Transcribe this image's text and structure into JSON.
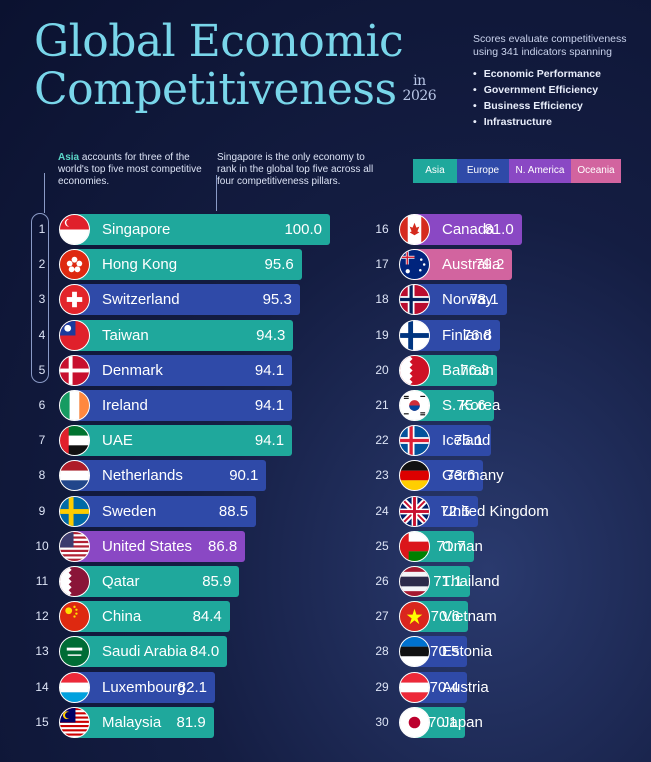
{
  "title": {
    "line1": "Global Economic",
    "line2": "Competitiveness",
    "in": "in",
    "year": "2026"
  },
  "scores_note": {
    "text": "Scores evaluate competitiveness using 341 indicators spanning",
    "pillars": [
      "Economic Performance",
      "Government Efficiency",
      "Business Efficiency",
      "Infrastructure"
    ]
  },
  "notes": {
    "asia_highlight": "Asia",
    "asia_text": " accounts for three of the world's top five most competitive economies.",
    "singapore_text": "Singapore is the only economy to rank in the global top five across all four competitiveness pillars."
  },
  "legend": [
    {
      "label": "Asia",
      "color": "#1fa89c"
    },
    {
      "label": "Europe",
      "color": "#2f4aa8"
    },
    {
      "label": "N. America",
      "color": "#8a48c4"
    },
    {
      "label": "Oceania",
      "color": "#d2649f"
    }
  ],
  "chart_data": {
    "type": "bar",
    "orientation": "horizontal",
    "categories": [
      "Singapore",
      "Hong Kong",
      "Switzerland",
      "Taiwan",
      "Denmark",
      "Ireland",
      "UAE",
      "Netherlands",
      "Sweden",
      "United States",
      "Qatar",
      "China",
      "Saudi Arabia",
      "Luxembourg",
      "Malaysia",
      "Canada",
      "Australia",
      "Norway",
      "Finland",
      "Bahrain",
      "S. Korea",
      "Iceland",
      "Germany",
      "United Kingdom",
      "Oman",
      "Thailand",
      "Vietnam",
      "Estonia",
      "Austria",
      "Japan"
    ],
    "values": [
      100.0,
      95.6,
      95.3,
      94.3,
      94.1,
      94.1,
      94.1,
      90.1,
      88.5,
      86.8,
      85.9,
      84.4,
      84.0,
      82.1,
      81.9,
      81.0,
      79.2,
      78.1,
      76.8,
      76.3,
      75.6,
      75.1,
      73.6,
      72.5,
      71.7,
      71.1,
      70.6,
      70.5,
      70.4,
      70.1
    ],
    "labels": [
      "100.0",
      "95.6",
      "95.3",
      "94.3",
      "94.1",
      "94.1",
      "94.1",
      "90.1",
      "88.5",
      "86.8",
      "85.9",
      "84.4",
      "84.0",
      "82.1",
      "81.9",
      "81.0",
      "79.2",
      "78.1",
      "76.8",
      "76.3",
      "75.6",
      "75.1",
      "73.6",
      "72.5",
      "71.7",
      "71.1",
      "70.6",
      "70.5",
      "70.4",
      "70.1"
    ],
    "ranks": [
      1,
      2,
      3,
      4,
      5,
      6,
      7,
      8,
      9,
      10,
      11,
      12,
      13,
      14,
      15,
      16,
      17,
      18,
      19,
      20,
      21,
      22,
      23,
      24,
      25,
      26,
      27,
      28,
      29,
      30
    ],
    "regions": [
      "Asia",
      "Asia",
      "Europe",
      "Asia",
      "Europe",
      "Europe",
      "Asia",
      "Europe",
      "Europe",
      "N. America",
      "Asia",
      "Asia",
      "Asia",
      "Europe",
      "Asia",
      "N. America",
      "Oceania",
      "Europe",
      "Europe",
      "Asia",
      "Asia",
      "Europe",
      "Europe",
      "Europe",
      "Asia",
      "Asia",
      "Asia",
      "Europe",
      "Europe",
      "Asia"
    ],
    "flag_icons": [
      "singapore-flag-icon",
      "hong-kong-flag-icon",
      "switzerland-flag-icon",
      "taiwan-flag-icon",
      "denmark-flag-icon",
      "ireland-flag-icon",
      "uae-flag-icon",
      "netherlands-flag-icon",
      "sweden-flag-icon",
      "united-states-flag-icon",
      "qatar-flag-icon",
      "china-flag-icon",
      "saudi-arabia-flag-icon",
      "luxembourg-flag-icon",
      "malaysia-flag-icon",
      "canada-flag-icon",
      "australia-flag-icon",
      "norway-flag-icon",
      "finland-flag-icon",
      "bahrain-flag-icon",
      "south-korea-flag-icon",
      "iceland-flag-icon",
      "germany-flag-icon",
      "united-kingdom-flag-icon",
      "oman-flag-icon",
      "thailand-flag-icon",
      "vietnam-flag-icon",
      "estonia-flag-icon",
      "austria-flag-icon",
      "japan-flag-icon"
    ],
    "region_colors": {
      "Asia": "#1fa89c",
      "Europe": "#2f4aa8",
      "N. America": "#8a48c4",
      "Oceania": "#d2649f"
    }
  }
}
